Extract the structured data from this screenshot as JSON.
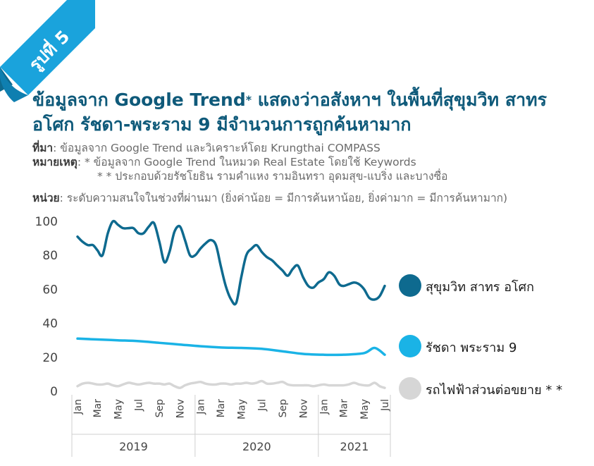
{
  "badge": {
    "text": "รูปที่ 5",
    "color": "#1aa3dc"
  },
  "title": {
    "line1": "ข้อมูลจาก Google Trend",
    "star": "*",
    "line1b": " แสดงว่าอสังหาฯ ในพื้นที่สุขุมวิท สาทร",
    "line2": "อโศก รัชดา-พระราม 9 มีจำนวนการถูกค้นหามาก"
  },
  "notes": {
    "source_label": "ที่มา",
    "source_text": ": ข้อมูลจาก Google Trend และวิเคราะห์โดย Krungthai COMPASS",
    "remark_label": "หมายเหตุ",
    "remark_1": ":    * ข้อมูลจาก Google Trend ในหมวด Real Estate โดยใช้ Keywords",
    "remark_2": "* * ประกอบด้วยรัชโยธิน รามคำแหง รามอินทรา อุดมสุข-แบริ่ง และบางซื่อ",
    "unit_label": "หน่วย",
    "unit_text": ": ระดับความสนใจในช่วงที่ผ่านมา (ยิ่งค่าน้อย = มีการค้นหาน้อย, ยิ่งค่ามาก = มีการค้นหามาก)"
  },
  "chart_data": {
    "type": "line",
    "ylim": [
      0,
      100
    ],
    "yticks": [
      0,
      20,
      40,
      60,
      80,
      100
    ],
    "x_start_month": "2019-01",
    "x_end_month": "2021-07",
    "month_tick_labels": [
      "Jan",
      "Mar",
      "May",
      "Jul",
      "Sep",
      "Nov",
      "Jan",
      "Mar",
      "May",
      "Jul",
      "Sep",
      "Nov",
      "Jan",
      "Mar",
      "May",
      "Jul"
    ],
    "year_labels": [
      "2019",
      "2020",
      "2021"
    ],
    "grid": false,
    "legend_position": "right",
    "series": [
      {
        "name": "สุขุมวิท สาทร อโศก",
        "color": "#0e6a8f",
        "x": [
          "2019-01-01",
          "2019-01-16",
          "2019-02-01",
          "2019-02-16",
          "2019-03-01",
          "2019-03-16",
          "2019-04-01",
          "2019-04-16",
          "2019-05-01",
          "2019-05-16",
          "2019-06-01",
          "2019-06-16",
          "2019-07-01",
          "2019-07-16",
          "2019-08-01",
          "2019-08-16",
          "2019-09-01",
          "2019-09-16",
          "2019-10-01",
          "2019-10-16",
          "2019-11-01",
          "2019-11-16",
          "2019-12-01",
          "2019-12-16",
          "2020-01-01",
          "2020-01-16",
          "2020-02-01",
          "2020-02-16",
          "2020-03-01",
          "2020-03-16",
          "2020-04-01",
          "2020-04-16",
          "2020-05-01",
          "2020-05-16",
          "2020-06-01",
          "2020-06-16",
          "2020-07-01",
          "2020-07-16",
          "2020-08-01",
          "2020-08-16",
          "2020-09-01",
          "2020-09-16",
          "2020-10-01",
          "2020-10-16",
          "2020-11-01",
          "2020-11-16",
          "2020-12-01",
          "2020-12-16",
          "2021-01-01",
          "2021-01-16",
          "2021-02-01",
          "2021-02-16",
          "2021-03-01",
          "2021-03-16",
          "2021-04-01",
          "2021-04-16",
          "2021-05-01",
          "2021-05-16",
          "2021-06-01",
          "2021-06-16",
          "2021-07-01"
        ],
        "values": [
          91,
          88,
          86,
          86,
          83,
          80,
          93,
          100,
          98,
          96,
          96,
          96,
          93,
          93,
          97,
          99,
          88,
          76,
          82,
          94,
          97,
          89,
          80,
          80,
          84,
          87,
          89,
          86,
          74,
          62,
          54,
          52,
          67,
          80,
          84,
          86,
          82,
          79,
          77,
          74,
          71,
          68,
          72,
          74,
          67,
          62,
          61,
          64,
          66,
          70,
          68,
          63,
          62,
          63,
          64,
          63,
          60,
          55,
          54,
          56,
          62
        ]
      },
      {
        "name": "รัชดา พระราม 9",
        "color": "#1ab3e6",
        "x": [
          "2019-01-01",
          "2019-03-01",
          "2019-05-01",
          "2019-07-01",
          "2019-09-01",
          "2019-11-01",
          "2020-01-01",
          "2020-03-01",
          "2020-05-01",
          "2020-07-01",
          "2020-09-01",
          "2020-11-01",
          "2021-01-01",
          "2021-03-01",
          "2021-05-01",
          "2021-06-01",
          "2021-07-01"
        ],
        "values": [
          31,
          30.5,
          30,
          29.5,
          28.5,
          27.5,
          26.5,
          25.8,
          25.5,
          25,
          23.5,
          22,
          21.5,
          21.5,
          22.5,
          25.5,
          21.5
        ]
      },
      {
        "name": "รถไฟฟ้าส่วนต่อขยาย * *",
        "color": "#d6d6d6",
        "x": [
          "2019-01-01",
          "2019-01-16",
          "2019-02-01",
          "2019-02-16",
          "2019-03-01",
          "2019-03-16",
          "2019-04-01",
          "2019-04-16",
          "2019-05-01",
          "2019-05-16",
          "2019-06-01",
          "2019-06-16",
          "2019-07-01",
          "2019-07-16",
          "2019-08-01",
          "2019-08-16",
          "2019-09-01",
          "2019-09-16",
          "2019-10-01",
          "2019-10-16",
          "2019-11-01",
          "2019-11-16",
          "2019-12-01",
          "2019-12-16",
          "2020-01-01",
          "2020-01-16",
          "2020-02-01",
          "2020-02-16",
          "2020-03-01",
          "2020-03-16",
          "2020-04-01",
          "2020-04-16",
          "2020-05-01",
          "2020-05-16",
          "2020-06-01",
          "2020-06-16",
          "2020-07-01",
          "2020-07-16",
          "2020-08-01",
          "2020-08-16",
          "2020-09-01",
          "2020-09-16",
          "2020-10-01",
          "2020-10-16",
          "2020-11-01",
          "2020-11-16",
          "2020-12-01",
          "2020-12-16",
          "2021-01-01",
          "2021-01-16",
          "2021-02-01",
          "2021-02-16",
          "2021-03-01",
          "2021-03-16",
          "2021-04-01",
          "2021-04-16",
          "2021-05-01",
          "2021-05-16",
          "2021-06-01",
          "2021-06-16",
          "2021-07-01"
        ],
        "values": [
          3,
          4.5,
          5,
          4.5,
          4,
          4,
          4.5,
          3.5,
          3,
          4,
          5,
          4.5,
          4,
          4.5,
          5,
          4.5,
          4.5,
          4,
          4.5,
          3,
          2,
          3.5,
          4.5,
          5,
          5.5,
          4.5,
          4,
          4,
          4.5,
          4.5,
          4,
          4.5,
          4.5,
          5,
          4.5,
          5,
          6,
          4.5,
          4.5,
          5,
          5.5,
          4,
          3.5,
          3.5,
          3.5,
          3.5,
          3,
          3.5,
          4,
          3.5,
          3.5,
          3.5,
          3.5,
          4,
          5,
          4,
          3.5,
          3.5,
          5,
          3,
          2
        ]
      }
    ]
  }
}
